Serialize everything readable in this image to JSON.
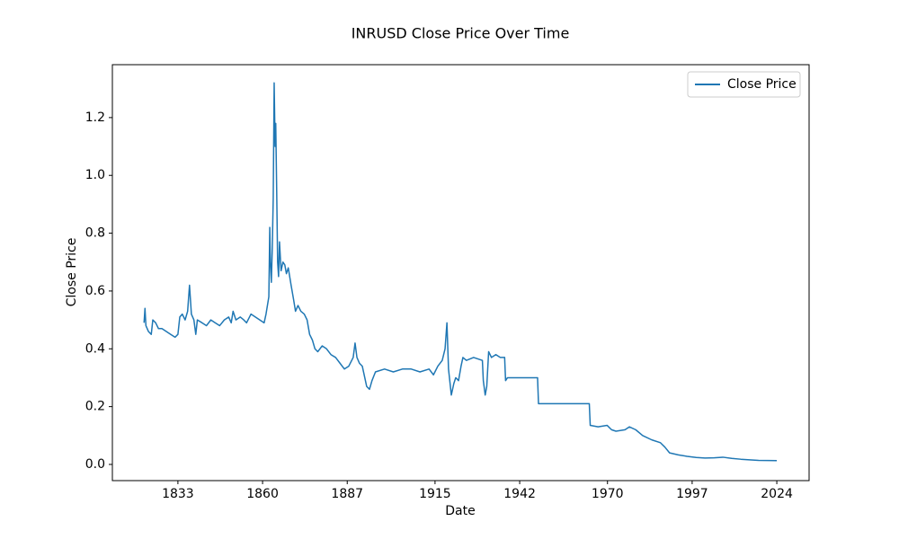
{
  "chart_data": {
    "type": "line",
    "title": "INRUSD Close Price Over Time",
    "x_label": "Date",
    "y_label": "Close Price",
    "x": [
      1822.2,
      1822.5,
      1822.8,
      1823.6,
      1824.5,
      1825.0,
      1825.9,
      1826.8,
      1827.9,
      1829.3,
      1830.7,
      1832.1,
      1833.0,
      1833.6,
      1834.4,
      1835.3,
      1836.1,
      1836.7,
      1837.3,
      1838.1,
      1838.7,
      1839.2,
      1840.7,
      1842.1,
      1843.5,
      1844.9,
      1846.3,
      1847.8,
      1849.2,
      1850.0,
      1850.6,
      1851.5,
      1852.9,
      1854.0,
      1854.9,
      1856.3,
      1857.7,
      1859.1,
      1860.5,
      1861.1,
      1862.0,
      1862.3,
      1862.5,
      1862.8,
      1863.1,
      1863.4,
      1863.7,
      1864.0,
      1864.2,
      1864.5,
      1864.8,
      1865.1,
      1865.4,
      1865.9,
      1866.5,
      1867.1,
      1867.6,
      1868.2,
      1869.1,
      1869.9,
      1870.5,
      1871.3,
      1872.2,
      1873.3,
      1874.2,
      1875.0,
      1875.9,
      1876.7,
      1877.6,
      1879.0,
      1880.4,
      1881.8,
      1883.3,
      1884.7,
      1886.1,
      1887.5,
      1888.9,
      1889.5,
      1890.1,
      1890.9,
      1891.8,
      1892.6,
      1893.2,
      1894.1,
      1894.9,
      1896.0,
      1898.9,
      1901.7,
      1904.6,
      1907.4,
      1910.2,
      1913.1,
      1914.5,
      1915.9,
      1917.3,
      1918.2,
      1918.8,
      1919.3,
      1920.2,
      1921.0,
      1921.6,
      1922.5,
      1923.3,
      1923.9,
      1925.0,
      1927.3,
      1930.1,
      1930.4,
      1931.0,
      1931.5,
      1932.1,
      1933.0,
      1934.4,
      1935.8,
      1937.2,
      1937.5,
      1938.1,
      1938.6,
      1941.5,
      1944.3,
      1947.7,
      1948.0,
      1952.8,
      1958.5,
      1964.2,
      1964.5,
      1967.0,
      1969.9,
      1971.3,
      1972.7,
      1975.6,
      1977.0,
      1979.0,
      1981.2,
      1984.1,
      1986.9,
      1988.3,
      1989.8,
      1992.6,
      1995.4,
      1998.3,
      2001.1,
      2004.0,
      2006.8,
      2009.6,
      2012.5,
      2015.3,
      2018.2,
      2024.0
    ],
    "series": [
      {
        "name": "Close Price",
        "color": "#1f77b4",
        "values": [
          0.49,
          0.54,
          0.48,
          0.46,
          0.45,
          0.5,
          0.49,
          0.47,
          0.47,
          0.46,
          0.45,
          0.44,
          0.45,
          0.51,
          0.52,
          0.5,
          0.53,
          0.62,
          0.52,
          0.5,
          0.45,
          0.5,
          0.49,
          0.48,
          0.5,
          0.49,
          0.48,
          0.5,
          0.51,
          0.49,
          0.53,
          0.5,
          0.51,
          0.5,
          0.49,
          0.52,
          0.51,
          0.5,
          0.49,
          0.52,
          0.58,
          0.82,
          0.7,
          0.63,
          0.75,
          0.92,
          1.32,
          1.1,
          1.18,
          0.95,
          0.7,
          0.65,
          0.77,
          0.67,
          0.7,
          0.69,
          0.66,
          0.68,
          0.62,
          0.57,
          0.53,
          0.55,
          0.53,
          0.52,
          0.5,
          0.45,
          0.43,
          0.4,
          0.39,
          0.41,
          0.4,
          0.38,
          0.37,
          0.35,
          0.33,
          0.34,
          0.37,
          0.42,
          0.37,
          0.35,
          0.34,
          0.3,
          0.27,
          0.26,
          0.29,
          0.32,
          0.33,
          0.32,
          0.33,
          0.33,
          0.32,
          0.33,
          0.31,
          0.34,
          0.36,
          0.4,
          0.49,
          0.33,
          0.24,
          0.28,
          0.3,
          0.29,
          0.34,
          0.37,
          0.36,
          0.37,
          0.36,
          0.29,
          0.24,
          0.27,
          0.39,
          0.37,
          0.38,
          0.37,
          0.37,
          0.29,
          0.3,
          0.3,
          0.3,
          0.3,
          0.3,
          0.21,
          0.21,
          0.21,
          0.21,
          0.135,
          0.13,
          0.135,
          0.12,
          0.115,
          0.12,
          0.13,
          0.12,
          0.1,
          0.085,
          0.075,
          0.06,
          0.04,
          0.033,
          0.028,
          0.024,
          0.022,
          0.023,
          0.025,
          0.021,
          0.018,
          0.016,
          0.014,
          0.013
        ]
      }
    ],
    "xlim": [
      1812.1,
      2034.3
    ],
    "xticks": [
      1833,
      1860,
      1887,
      1915,
      1942,
      1970,
      1997,
      2024
    ],
    "ylim": [
      -0.056,
      1.383
    ],
    "yticks": [
      {
        "value": 0,
        "label": "0.0"
      },
      0.2,
      0.4,
      0.6,
      0.8,
      {
        "value": 1,
        "label": "1.0"
      },
      1.2
    ],
    "grid": false,
    "legend": "upper right"
  }
}
